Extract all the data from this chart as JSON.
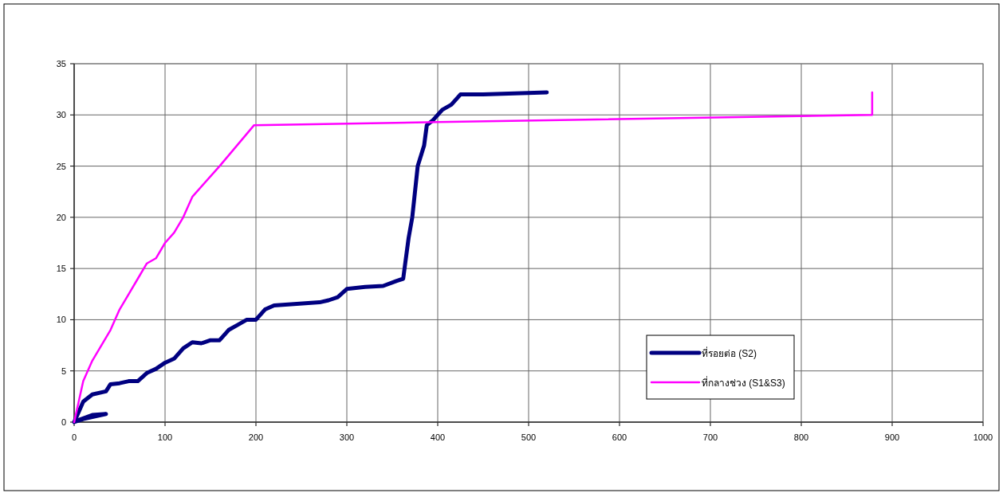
{
  "chart_data": {
    "type": "line",
    "xlim": [
      0,
      1000
    ],
    "ylim": [
      0,
      35
    ],
    "xticks": [
      0,
      100,
      200,
      300,
      400,
      500,
      600,
      700,
      800,
      900,
      1000
    ],
    "yticks": [
      0,
      5,
      10,
      15,
      20,
      25,
      30,
      35
    ],
    "grid": true,
    "legend": "right",
    "marker": "none",
    "line_style": "solid",
    "series": [
      {
        "name": "ที่รอยต่อ (S2)",
        "color": "#000080",
        "x": [
          0,
          10,
          35,
          20,
          5,
          0,
          5,
          10,
          20,
          35,
          40,
          50,
          60,
          70,
          80,
          90,
          100,
          110,
          120,
          130,
          140,
          150,
          160,
          170,
          180,
          190,
          200,
          210,
          220,
          270,
          280,
          290,
          300,
          320,
          340,
          355,
          362,
          365,
          368,
          372,
          378,
          385,
          388,
          395,
          405,
          415,
          425,
          450,
          520
        ],
        "values": [
          0,
          0.3,
          0.8,
          0.7,
          0.2,
          0,
          1,
          2,
          2.7,
          3,
          3.7,
          3.8,
          4,
          4,
          4.8,
          5.2,
          5.8,
          6.2,
          7.2,
          7.8,
          7.7,
          8,
          8,
          9,
          9.5,
          10,
          10,
          11,
          11.4,
          11.7,
          11.9,
          12.2,
          13,
          13.2,
          13.3,
          13.8,
          14,
          16,
          18,
          20,
          25,
          27,
          29,
          29.5,
          30.5,
          31,
          32,
          32,
          32.2
        ]
      },
      {
        "name": "ที่กลางช่วง (S1&S3)",
        "color": "#ff00ff",
        "x": [
          0,
          5,
          10,
          20,
          30,
          40,
          50,
          60,
          70,
          80,
          90,
          100,
          110,
          120,
          130,
          160,
          198,
          400,
          878,
          878
        ],
        "values": [
          0,
          2,
          4,
          6,
          7.5,
          9,
          11,
          12.5,
          14,
          15.5,
          16,
          17.5,
          18.5,
          20,
          22,
          25,
          29,
          29.3,
          30,
          32.2
        ]
      }
    ]
  }
}
